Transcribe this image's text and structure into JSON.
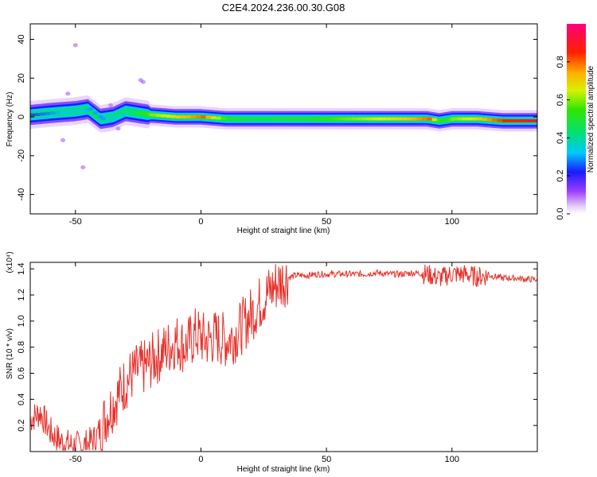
{
  "title": "C2E4.2024.236.00.30.G08",
  "colors": {
    "snr_line": "#e8302a",
    "spectrum_core": "#ff0000",
    "spectrum_edge": "#0000ff"
  },
  "colorbar": {
    "label": "Normalized spectral amplitude",
    "ticks": [
      "0.0",
      "0.2",
      "0.4",
      "0.6",
      "0.8"
    ],
    "tick_values": [
      0.0,
      0.2,
      0.4,
      0.6,
      0.8
    ],
    "range": [
      0,
      1
    ]
  },
  "chart_data": [
    {
      "type": "heatmap",
      "xlabel": "Height of straight line (km)",
      "ylabel": "Frequency (Hz)",
      "xlim": [
        -68,
        134
      ],
      "ylim": [
        -50,
        48
      ],
      "x_ticks": [
        -50,
        0,
        50,
        100
      ],
      "y_ticks": [
        -40,
        -20,
        0,
        20,
        40
      ],
      "x_tick_labels": [
        "-50",
        "0",
        "50",
        "100"
      ],
      "y_tick_labels": [
        "-40",
        "-20",
        "0",
        "20",
        "40"
      ],
      "colormap": "rainbow",
      "ridge": {
        "x": [
          -68,
          -60,
          -50,
          -45,
          -40,
          -35,
          -30,
          -25,
          -20,
          -10,
          0,
          10,
          20,
          40,
          60,
          80,
          90,
          95,
          100,
          110,
          120,
          134
        ],
        "frequency": [
          1,
          2,
          3,
          4,
          -1,
          0,
          3,
          2,
          1,
          0,
          0,
          -1,
          -1,
          -1,
          -1,
          -1,
          -1,
          -2,
          -1,
          -1,
          -2,
          -2
        ],
        "amplitude": [
          0.25,
          0.3,
          0.35,
          0.3,
          0.3,
          0.35,
          0.4,
          0.5,
          0.6,
          0.7,
          0.8,
          0.5,
          0.45,
          0.5,
          0.6,
          0.7,
          0.8,
          0.5,
          0.6,
          0.7,
          0.85,
          0.95
        ]
      },
      "scatter_blobs": [
        {
          "x": -23,
          "y": 18
        },
        {
          "x": -24,
          "y": 19
        },
        {
          "x": -47,
          "y": -26
        },
        {
          "x": -50,
          "y": 37
        },
        {
          "x": -53,
          "y": 12
        },
        {
          "x": -55,
          "y": -12
        },
        {
          "x": -33,
          "y": -6
        },
        {
          "x": -36,
          "y": 6
        }
      ]
    },
    {
      "type": "line",
      "xlabel": "Height of straight line (km)",
      "ylabel": "SNR (10 * v/v)",
      "ylabel_multiplier": "(x10⁴)",
      "xlim": [
        -68,
        134
      ],
      "ylim": [
        0,
        1.45
      ],
      "x_ticks": [
        -50,
        0,
        50,
        100
      ],
      "y_ticks": [
        0.2,
        0.4,
        0.6,
        0.8,
        1.0,
        1.2,
        1.4
      ],
      "x_tick_labels": [
        "-50",
        "0",
        "50",
        "100"
      ],
      "y_tick_labels": [
        "0.2",
        "0.4",
        "0.6",
        "0.8",
        "1.0",
        "1.2",
        "1.4"
      ],
      "series": [
        {
          "x": [
            -68,
            -64,
            -60,
            -56,
            -52,
            -48,
            -45,
            -42,
            -40,
            -37,
            -34,
            -31,
            -28,
            -25,
            -22,
            -18,
            -14,
            -10,
            -6,
            -2,
            2,
            6,
            10,
            14,
            18,
            22,
            26,
            30,
            34,
            38,
            42,
            46,
            50,
            55,
            60,
            65,
            70,
            75,
            80,
            85,
            90,
            95,
            100,
            105,
            110,
            115,
            120,
            125,
            130,
            134
          ],
          "y": [
            0.25,
            0.3,
            0.15,
            0.08,
            0.05,
            0.04,
            0.06,
            0.1,
            0.18,
            0.3,
            0.4,
            0.5,
            0.58,
            0.62,
            0.65,
            0.72,
            0.78,
            0.85,
            0.8,
            0.9,
            0.85,
            0.88,
            0.85,
            0.9,
            1.0,
            1.1,
            1.2,
            1.28,
            1.33,
            1.35,
            1.35,
            1.36,
            1.36,
            1.36,
            1.36,
            1.36,
            1.37,
            1.36,
            1.36,
            1.37,
            1.36,
            1.33,
            1.36,
            1.36,
            1.34,
            1.35,
            1.33,
            1.33,
            1.32,
            1.32
          ]
        }
      ]
    }
  ]
}
